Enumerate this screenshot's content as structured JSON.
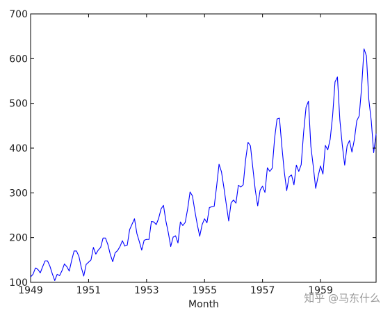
{
  "chart_data": {
    "type": "line",
    "title": "",
    "xlabel": "Month",
    "ylabel": "",
    "grid": false,
    "x_start": "1949-01",
    "x_end": "1960-12",
    "xlim": [
      "1949-01",
      "1960-12"
    ],
    "ylim": [
      100,
      700
    ],
    "x_ticks": [
      "1949",
      "1951",
      "1953",
      "1955",
      "1957",
      "1959"
    ],
    "y_ticks": [
      "100",
      "200",
      "300",
      "400",
      "500",
      "600",
      "700"
    ],
    "series": [
      {
        "color": "#0000ff",
        "values": [
          112,
          118,
          132,
          129,
          121,
          135,
          148,
          148,
          136,
          119,
          104,
          118,
          115,
          126,
          141,
          135,
          125,
          149,
          170,
          170,
          158,
          133,
          114,
          140,
          145,
          150,
          178,
          163,
          172,
          178,
          199,
          199,
          184,
          162,
          146,
          166,
          171,
          180,
          193,
          181,
          183,
          218,
          230,
          242,
          209,
          191,
          172,
          194,
          196,
          196,
          236,
          235,
          229,
          243,
          264,
          272,
          237,
          211,
          180,
          201,
          204,
          188,
          235,
          227,
          234,
          264,
          302,
          293,
          259,
          229,
          203,
          229,
          242,
          233,
          267,
          269,
          270,
          315,
          364,
          347,
          312,
          274,
          237,
          278,
          284,
          277,
          317,
          313,
          318,
          374,
          413,
          405,
          355,
          306,
          271,
          306,
          315,
          301,
          356,
          348,
          355,
          422,
          465,
          467,
          404,
          347,
          305,
          336,
          340,
          318,
          362,
          348,
          363,
          435,
          491,
          505,
          404,
          359,
          310,
          337,
          360,
          342,
          406,
          396,
          420,
          472,
          548,
          559,
          463,
          407,
          362,
          405,
          417,
          391,
          419,
          461,
          472,
          535,
          622,
          606,
          508,
          461,
          390,
          432
        ]
      }
    ]
  },
  "watermark": "知乎 @马东什么"
}
